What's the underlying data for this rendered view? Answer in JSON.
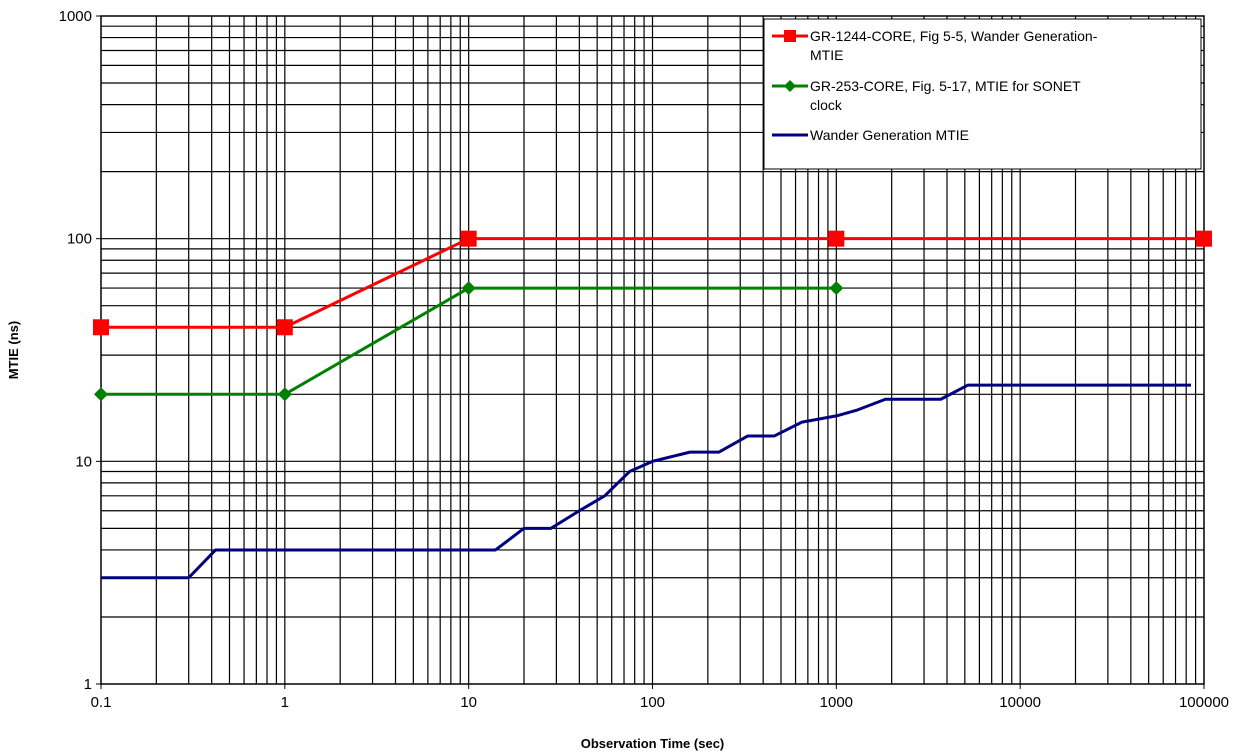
{
  "chart_data": {
    "type": "line",
    "title": "",
    "xlabel": "Observation Time (sec)",
    "ylabel": "MTIE (ns)",
    "x_scale": "log",
    "y_scale": "log",
    "xlim": [
      0.1,
      100000
    ],
    "ylim": [
      1,
      1000
    ],
    "x_ticks": [
      "0.1",
      "1",
      "10",
      "100",
      "1000",
      "10000",
      "100000"
    ],
    "y_ticks": [
      "1",
      "10",
      "100",
      "1000"
    ],
    "grid": true,
    "legend_position": "top-right",
    "series": [
      {
        "name": "GR-1244-CORE, Fig 5-5, Wander Generation-MTIE",
        "color": "#ff0000",
        "marker": "square",
        "x": [
          0.1,
          1,
          10,
          1000,
          100000
        ],
        "y": [
          40,
          40,
          100,
          100,
          100
        ]
      },
      {
        "name": "GR-253-CORE, Fig. 5-17, MTIE for SONET clock",
        "color": "#008000",
        "marker": "diamond",
        "x": [
          0.1,
          1,
          10,
          1000
        ],
        "y": [
          20,
          20,
          60,
          60
        ]
      },
      {
        "name": "Wander Generation MTIE",
        "color": "#000080",
        "marker": "none",
        "x": [
          0.1,
          0.3,
          0.42,
          14,
          20,
          28,
          40,
          55,
          75,
          100,
          160,
          230,
          330,
          460,
          650,
          1000,
          1300,
          1850,
          3700,
          5200,
          85000
        ],
        "y": [
          3,
          3,
          4,
          4,
          5,
          5,
          6,
          7,
          9,
          10,
          11,
          11,
          13,
          13,
          15,
          16,
          17,
          19,
          19,
          22,
          22
        ]
      }
    ]
  }
}
